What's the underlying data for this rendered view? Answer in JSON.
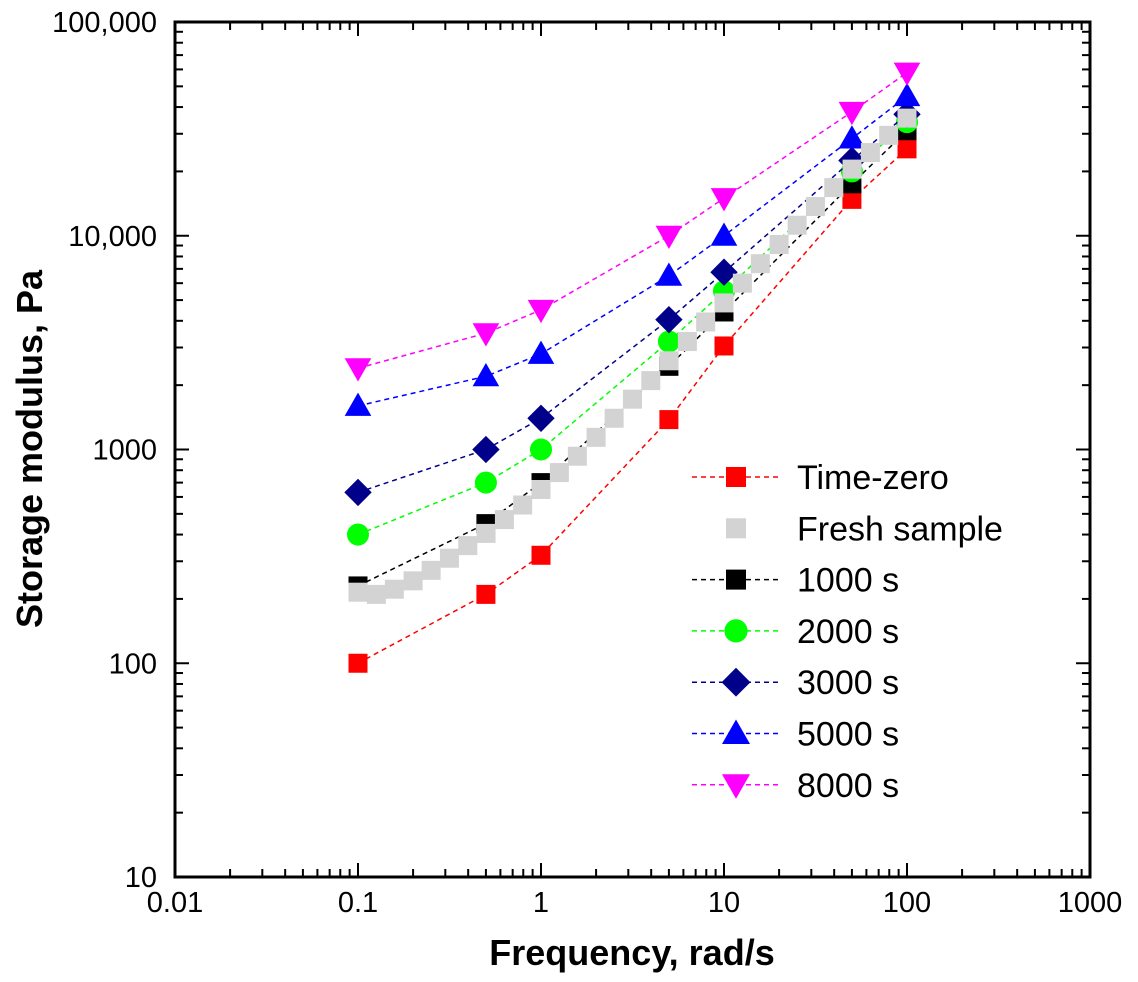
{
  "chart_data": {
    "type": "scatter",
    "title": "",
    "xlabel": "Frequency, rad/s",
    "ylabel": "Storage modulus, Pa",
    "xscale": "log",
    "yscale": "log",
    "xlim": [
      0.01,
      1000
    ],
    "ylim": [
      10,
      100000
    ],
    "xticks": [
      {
        "value": 0.01,
        "label": "0.01"
      },
      {
        "value": 0.1,
        "label": "0.1"
      },
      {
        "value": 1,
        "label": "1"
      },
      {
        "value": 10,
        "label": "10"
      },
      {
        "value": 100,
        "label": "100"
      },
      {
        "value": 1000,
        "label": "1000"
      }
    ],
    "yticks": [
      {
        "value": 10,
        "label": "10"
      },
      {
        "value": 100,
        "label": "100"
      },
      {
        "value": 1000,
        "label": "1000"
      },
      {
        "value": 10000,
        "label": "10,000"
      },
      {
        "value": 100000,
        "label": "100,000"
      }
    ],
    "legend_position": "lower-right",
    "series": [
      {
        "name": "Time-zero",
        "color": "#ff0000",
        "marker": "square",
        "line": "dashed",
        "x": [
          0.1,
          0.5,
          1,
          5,
          10,
          50,
          100
        ],
        "y": [
          100,
          210,
          320,
          1380,
          3050,
          14800,
          25500
        ]
      },
      {
        "name": "Fresh sample",
        "color": "#d3d3d3",
        "marker": "square",
        "line": "none",
        "x": [
          0.1,
          0.126,
          0.158,
          0.2,
          0.251,
          0.316,
          0.398,
          0.501,
          0.631,
          0.794,
          1,
          1.26,
          1.58,
          2,
          2.51,
          3.16,
          3.98,
          5.01,
          6.31,
          7.94,
          10,
          12.6,
          15.8,
          20,
          25.1,
          31.6,
          39.8,
          50.1,
          63.1,
          79.4,
          100
        ],
        "y": [
          215,
          210,
          222,
          243,
          272,
          310,
          355,
          405,
          470,
          550,
          650,
          780,
          930,
          1140,
          1400,
          1720,
          2100,
          2600,
          3200,
          3950,
          4850,
          6000,
          7400,
          9100,
          11200,
          13700,
          16800,
          20500,
          24500,
          29500,
          35500
        ]
      },
      {
        "name": "1000 s",
        "color": "#000000",
        "marker": "square",
        "line": "dashed",
        "x": [
          0.1,
          0.5,
          1,
          5,
          10,
          50,
          100
        ],
        "y": [
          230,
          450,
          700,
          2450,
          4400,
          17500,
          31000
        ]
      },
      {
        "name": "2000 s",
        "color": "#00ff00",
        "marker": "circle",
        "line": "dashed",
        "x": [
          0.1,
          0.5,
          1,
          5,
          10,
          50,
          100
        ],
        "y": [
          400,
          700,
          1000,
          3200,
          5500,
          20000,
          34000
        ]
      },
      {
        "name": "3000 s",
        "color": "#00008b",
        "marker": "diamond",
        "line": "dashed",
        "x": [
          0.1,
          0.5,
          1,
          5,
          10,
          50,
          100
        ],
        "y": [
          630,
          1000,
          1400,
          4050,
          6750,
          22500,
          37000
        ]
      },
      {
        "name": "5000 s",
        "color": "#0000ff",
        "marker": "triangle-up",
        "line": "dashed",
        "x": [
          0.1,
          0.5,
          1,
          5,
          10,
          50,
          100
        ],
        "y": [
          1600,
          2200,
          2800,
          6500,
          10000,
          28500,
          45000
        ]
      },
      {
        "name": "8000 s",
        "color": "#ff00ff",
        "marker": "triangle-down",
        "line": "dashed",
        "x": [
          0.1,
          0.5,
          1,
          5,
          10,
          50,
          100
        ],
        "y": [
          2400,
          3500,
          4500,
          10000,
          15000,
          38000,
          58000
        ]
      }
    ]
  }
}
